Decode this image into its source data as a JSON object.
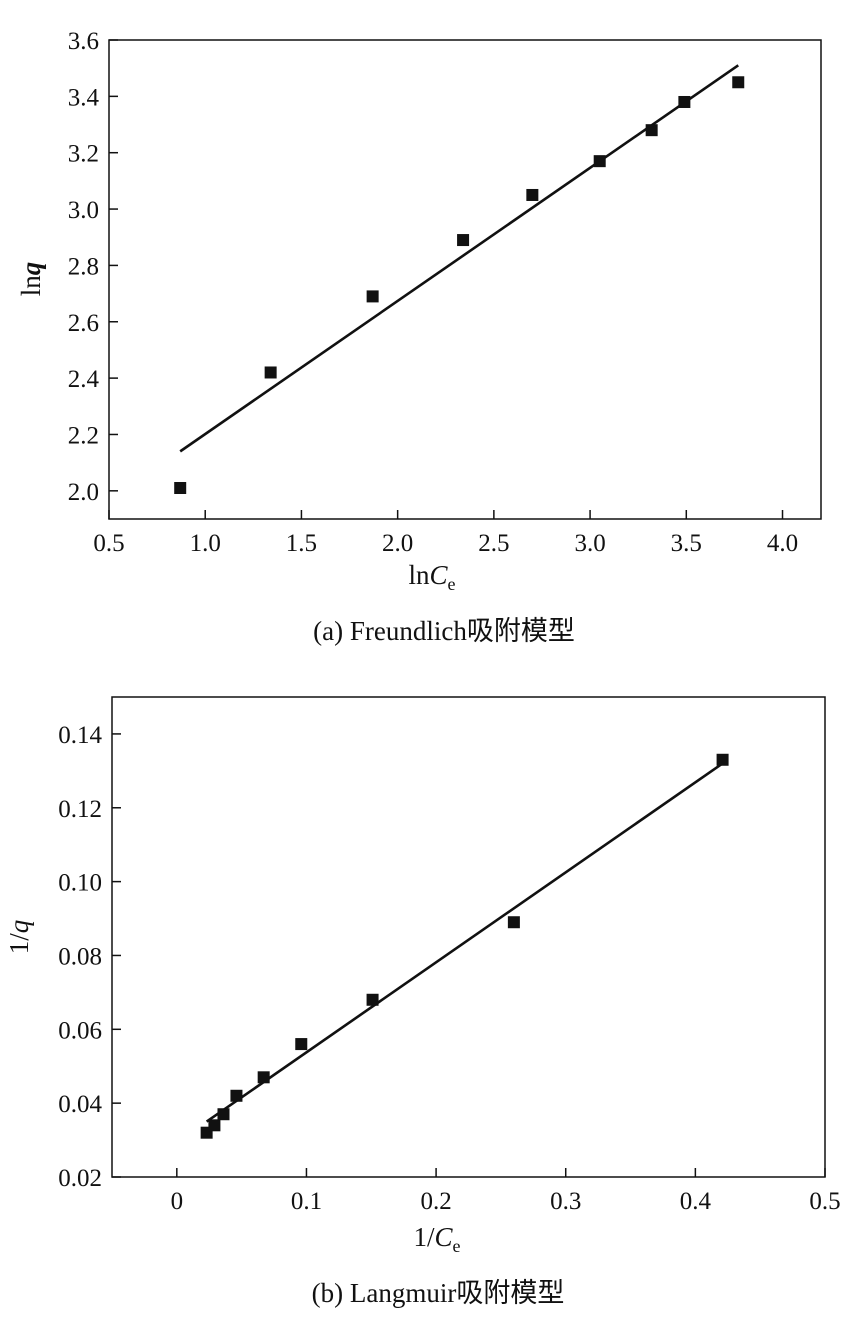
{
  "chart_data": [
    {
      "type": "scatter",
      "caption": "(a) Freundlich吸附模型",
      "xlabel": {
        "main": "ln",
        "italic": "C",
        "sub": "e"
      },
      "ylabel": {
        "main": "ln",
        "bold_italic": "q"
      },
      "xlim": [
        0.5,
        4.2
      ],
      "ylim": [
        1.9,
        3.6
      ],
      "xticks": [
        0.5,
        1.0,
        1.5,
        2.0,
        2.5,
        3.0,
        3.5,
        4.0
      ],
      "xtick_labels": [
        "0.5",
        "1.0",
        "1.5",
        "2.0",
        "2.5",
        "3.0",
        "3.5",
        "4.0"
      ],
      "yticks": [
        2.0,
        2.2,
        2.4,
        2.6,
        2.8,
        3.0,
        3.2,
        3.4,
        3.6
      ],
      "ytick_labels": [
        "2.0",
        "2.2",
        "2.4",
        "2.6",
        "2.8",
        "3.0",
        "3.2",
        "3.4",
        "3.6"
      ],
      "grid": false,
      "points": {
        "x": [
          0.87,
          1.34,
          1.87,
          2.34,
          2.7,
          3.05,
          3.32,
          3.49,
          3.77
        ],
        "y": [
          2.01,
          2.42,
          2.69,
          2.89,
          3.05,
          3.17,
          3.28,
          3.38,
          3.45
        ],
        "marker": "square",
        "color": "#111111"
      },
      "fit_line": {
        "x": [
          0.87,
          3.77
        ],
        "y": [
          2.14,
          3.51
        ],
        "color": "#111111"
      }
    },
    {
      "type": "scatter",
      "caption": "(b) Langmuir吸附模型",
      "xlabel": {
        "main": "1/",
        "italic": "C",
        "sub": "e"
      },
      "ylabel": {
        "main": "1/",
        "italic": "q"
      },
      "xlim": [
        -0.05,
        0.5
      ],
      "ylim": [
        0.02,
        0.15
      ],
      "xticks": [
        0,
        0.1,
        0.2,
        0.3,
        0.4,
        0.5
      ],
      "xtick_labels": [
        "0",
        "0.1",
        "0.2",
        "0.3",
        "0.4",
        "0.5"
      ],
      "yticks": [
        0.02,
        0.04,
        0.06,
        0.08,
        0.1,
        0.12,
        0.14
      ],
      "ytick_labels": [
        "0.02",
        "0.04",
        "0.06",
        "0.08",
        "0.10",
        "0.12",
        "0.14"
      ],
      "grid": false,
      "points": {
        "x": [
          0.023,
          0.029,
          0.036,
          0.046,
          0.067,
          0.096,
          0.151,
          0.26,
          0.421
        ],
        "y": [
          0.032,
          0.034,
          0.037,
          0.042,
          0.047,
          0.056,
          0.068,
          0.089,
          0.133
        ],
        "marker": "square",
        "color": "#111111"
      },
      "fit_line": {
        "x": [
          0.023,
          0.421
        ],
        "y": [
          0.035,
          0.132
        ],
        "color": "#111111"
      }
    }
  ]
}
